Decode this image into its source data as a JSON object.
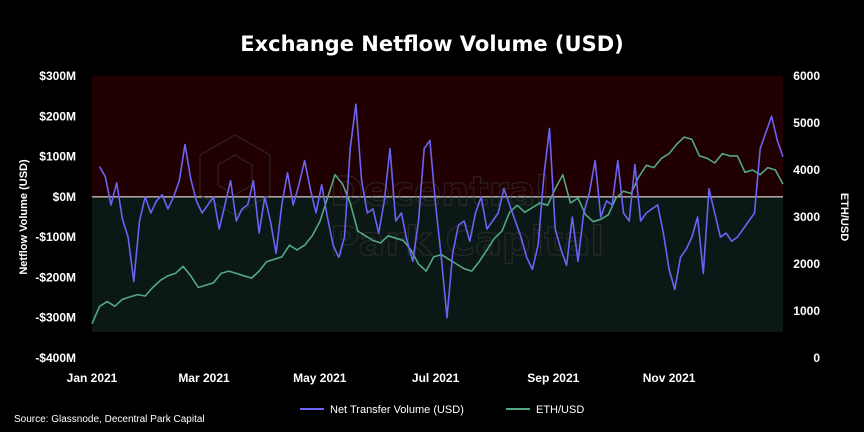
{
  "chart_data": {
    "type": "line",
    "title": "Exchange Netflow Volume (USD)",
    "ylabel": "Netflow Volume (USD)",
    "y2label": "ETH/USD",
    "source": "Source: Glassnode, Decentral Park Capital",
    "watermark": [
      "Decentral",
      "Park Capital"
    ],
    "x_start": "2021-01-01",
    "x_end": "2021-12-31",
    "x_ticks": [
      {
        "date": "2021-01-01",
        "label": "Jan 2021"
      },
      {
        "date": "2021-03-01",
        "label": "Mar 2021"
      },
      {
        "date": "2021-05-01",
        "label": "May 2021"
      },
      {
        "date": "2021-07-01",
        "label": "Jul 2021"
      },
      {
        "date": "2021-09-01",
        "label": "Sep 2021"
      },
      {
        "date": "2021-11-01",
        "label": "Nov 2021"
      }
    ],
    "ylim": [
      -400,
      300
    ],
    "y_ticks": [
      {
        "value": 300,
        "label": "$300M"
      },
      {
        "value": 200,
        "label": "$200M"
      },
      {
        "value": 100,
        "label": "$100M"
      },
      {
        "value": 0,
        "label": "$0M"
      },
      {
        "value": -100,
        "label": "-$100M"
      },
      {
        "value": -200,
        "label": "-$200M"
      },
      {
        "value": -300,
        "label": "-$300M"
      },
      {
        "value": -400,
        "label": "-$400M"
      }
    ],
    "y2lim": [
      0,
      6000
    ],
    "y2_ticks": [
      {
        "value": 6000,
        "label": "6000"
      },
      {
        "value": 5000,
        "label": "5000"
      },
      {
        "value": 4000,
        "label": "4000"
      },
      {
        "value": 3000,
        "label": "3000"
      },
      {
        "value": 2000,
        "label": "2000"
      },
      {
        "value": 1000,
        "label": "1000"
      },
      {
        "value": 0,
        "label": "0"
      }
    ],
    "bands": [
      {
        "from": 0,
        "to": 300,
        "color": "#200000"
      },
      {
        "from": -335,
        "to": 0,
        "color": "#0c1816"
      }
    ],
    "zero_line_color": "#ffffff",
    "series": [
      {
        "name": "Net Transfer Volume (USD)",
        "axis": "left",
        "color": "#6a63f5",
        "x": [
          "2021-01-05",
          "2021-01-08",
          "2021-01-11",
          "2021-01-14",
          "2021-01-17",
          "2021-01-20",
          "2021-01-23",
          "2021-01-26",
          "2021-01-29",
          "2021-02-01",
          "2021-02-04",
          "2021-02-07",
          "2021-02-10",
          "2021-02-13",
          "2021-02-16",
          "2021-02-19",
          "2021-02-22",
          "2021-02-25",
          "2021-02-28",
          "2021-03-03",
          "2021-03-06",
          "2021-03-09",
          "2021-03-12",
          "2021-03-15",
          "2021-03-18",
          "2021-03-21",
          "2021-03-24",
          "2021-03-27",
          "2021-03-30",
          "2021-04-02",
          "2021-04-05",
          "2021-04-08",
          "2021-04-11",
          "2021-04-14",
          "2021-04-17",
          "2021-04-20",
          "2021-04-23",
          "2021-04-26",
          "2021-04-29",
          "2021-05-02",
          "2021-05-05",
          "2021-05-08",
          "2021-05-11",
          "2021-05-14",
          "2021-05-17",
          "2021-05-20",
          "2021-05-23",
          "2021-05-26",
          "2021-05-29",
          "2021-06-01",
          "2021-06-04",
          "2021-06-07",
          "2021-06-10",
          "2021-06-13",
          "2021-06-16",
          "2021-06-19",
          "2021-06-22",
          "2021-06-25",
          "2021-06-28",
          "2021-07-01",
          "2021-07-04",
          "2021-07-07",
          "2021-07-10",
          "2021-07-13",
          "2021-07-16",
          "2021-07-19",
          "2021-07-22",
          "2021-07-25",
          "2021-07-28",
          "2021-07-31",
          "2021-08-03",
          "2021-08-06",
          "2021-08-09",
          "2021-08-12",
          "2021-08-15",
          "2021-08-18",
          "2021-08-21",
          "2021-08-24",
          "2021-08-27",
          "2021-08-30",
          "2021-09-02",
          "2021-09-05",
          "2021-09-08",
          "2021-09-11",
          "2021-09-14",
          "2021-09-17",
          "2021-09-20",
          "2021-09-23",
          "2021-09-26",
          "2021-09-29",
          "2021-10-02",
          "2021-10-05",
          "2021-10-08",
          "2021-10-11",
          "2021-10-14",
          "2021-10-17",
          "2021-10-20",
          "2021-10-23",
          "2021-10-26",
          "2021-10-29",
          "2021-11-01",
          "2021-11-04",
          "2021-11-07",
          "2021-11-10",
          "2021-11-13",
          "2021-11-16",
          "2021-11-19",
          "2021-11-22",
          "2021-11-25",
          "2021-11-28",
          "2021-12-01",
          "2021-12-04",
          "2021-12-07",
          "2021-12-10",
          "2021-12-13",
          "2021-12-16",
          "2021-12-19",
          "2021-12-22",
          "2021-12-25",
          "2021-12-28",
          "2021-12-31"
        ],
        "y": [
          75,
          50,
          -20,
          35,
          -55,
          -100,
          -210,
          -60,
          0,
          -40,
          -10,
          5,
          -30,
          0,
          40,
          130,
          45,
          -10,
          -40,
          -20,
          0,
          -80,
          -20,
          40,
          -60,
          -30,
          -20,
          40,
          -90,
          0,
          -60,
          -140,
          -20,
          60,
          -20,
          30,
          90,
          20,
          -40,
          30,
          -50,
          -120,
          -150,
          -100,
          120,
          230,
          40,
          -40,
          -30,
          -90,
          -10,
          120,
          -60,
          -40,
          -110,
          -160,
          -60,
          120,
          140,
          -20,
          -150,
          -300,
          -140,
          -70,
          -60,
          -110,
          -40,
          0,
          -80,
          -60,
          -40,
          20,
          -20,
          -60,
          -100,
          -150,
          -180,
          -120,
          50,
          170,
          -80,
          -130,
          -170,
          -50,
          -160,
          -40,
          10,
          90,
          -50,
          -10,
          -20,
          90,
          -40,
          -60,
          80,
          -60,
          -40,
          -30,
          -20,
          -90,
          -180,
          -230,
          -150,
          -130,
          -100,
          -50,
          -190,
          20,
          -40,
          -100,
          -90,
          -110,
          -100,
          -80,
          -60,
          -40,
          120,
          160,
          200,
          140,
          100
        ]
      },
      {
        "name": "ETH/USD",
        "axis": "right",
        "color": "#52a882",
        "x": [
          "2021-01-01",
          "2021-01-05",
          "2021-01-09",
          "2021-01-13",
          "2021-01-17",
          "2021-01-21",
          "2021-01-25",
          "2021-01-29",
          "2021-02-02",
          "2021-02-06",
          "2021-02-10",
          "2021-02-14",
          "2021-02-18",
          "2021-02-22",
          "2021-02-26",
          "2021-03-02",
          "2021-03-06",
          "2021-03-10",
          "2021-03-14",
          "2021-03-18",
          "2021-03-22",
          "2021-03-26",
          "2021-03-30",
          "2021-04-03",
          "2021-04-07",
          "2021-04-11",
          "2021-04-15",
          "2021-04-19",
          "2021-04-23",
          "2021-04-27",
          "2021-05-01",
          "2021-05-05",
          "2021-05-09",
          "2021-05-13",
          "2021-05-17",
          "2021-05-21",
          "2021-05-25",
          "2021-05-29",
          "2021-06-02",
          "2021-06-06",
          "2021-06-10",
          "2021-06-14",
          "2021-06-18",
          "2021-06-22",
          "2021-06-26",
          "2021-06-30",
          "2021-07-04",
          "2021-07-08",
          "2021-07-12",
          "2021-07-16",
          "2021-07-20",
          "2021-07-24",
          "2021-07-28",
          "2021-08-01",
          "2021-08-05",
          "2021-08-09",
          "2021-08-13",
          "2021-08-17",
          "2021-08-21",
          "2021-08-25",
          "2021-08-29",
          "2021-09-02",
          "2021-09-06",
          "2021-09-10",
          "2021-09-14",
          "2021-09-18",
          "2021-09-22",
          "2021-09-26",
          "2021-09-30",
          "2021-10-04",
          "2021-10-08",
          "2021-10-12",
          "2021-10-16",
          "2021-10-20",
          "2021-10-24",
          "2021-10-28",
          "2021-11-01",
          "2021-11-05",
          "2021-11-09",
          "2021-11-13",
          "2021-11-17",
          "2021-11-21",
          "2021-11-25",
          "2021-11-29",
          "2021-12-03",
          "2021-12-07",
          "2021-12-11",
          "2021-12-15",
          "2021-12-19",
          "2021-12-23",
          "2021-12-27",
          "2021-12-31"
        ],
        "y": [
          730,
          1100,
          1200,
          1100,
          1250,
          1300,
          1350,
          1320,
          1500,
          1650,
          1750,
          1800,
          1950,
          1750,
          1500,
          1550,
          1600,
          1800,
          1850,
          1800,
          1750,
          1700,
          1850,
          2050,
          2100,
          2150,
          2400,
          2300,
          2400,
          2600,
          2900,
          3400,
          3900,
          3700,
          3300,
          2700,
          2600,
          2500,
          2450,
          2600,
          2550,
          2500,
          2300,
          2000,
          1850,
          2150,
          2200,
          2100,
          2000,
          1900,
          1850,
          2050,
          2300,
          2550,
          2700,
          3100,
          3250,
          3100,
          3200,
          3300,
          3250,
          3600,
          3900,
          3300,
          3400,
          3050,
          2900,
          2950,
          3050,
          3400,
          3550,
          3500,
          3850,
          4100,
          4050,
          4250,
          4350,
          4550,
          4700,
          4650,
          4300,
          4250,
          4150,
          4350,
          4300,
          4300,
          3950,
          4000,
          3900,
          4050,
          4000,
          3700
        ]
      }
    ]
  }
}
